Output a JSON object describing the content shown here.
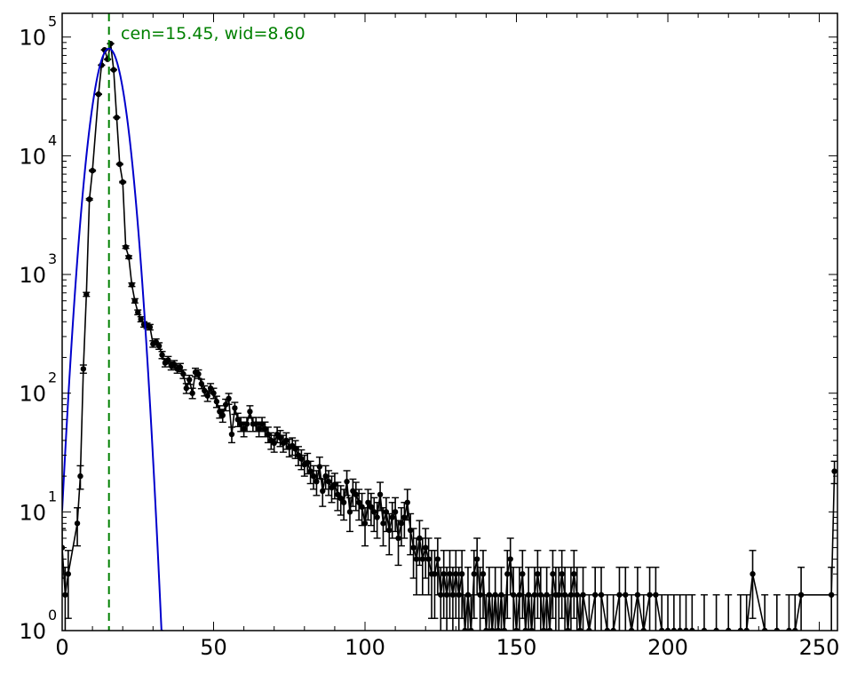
{
  "chart_data": {
    "type": "scatter",
    "title": "",
    "xlabel": "",
    "ylabel": "",
    "xlim": [
      0,
      256
    ],
    "ylim_log10": [
      0,
      5.2
    ],
    "y_scale": "log",
    "grid": false,
    "annotation": "cen=15.45, wid=8.60",
    "x_ticks": [
      {
        "value": 0,
        "label": "0"
      },
      {
        "value": 50,
        "label": "50"
      },
      {
        "value": 100,
        "label": "100"
      },
      {
        "value": 150,
        "label": "150"
      },
      {
        "value": 200,
        "label": "200"
      },
      {
        "value": 250,
        "label": "250"
      }
    ],
    "y_ticks": [
      {
        "exp": 0,
        "base": "10",
        "sup": "0"
      },
      {
        "exp": 1,
        "base": "10",
        "sup": "1"
      },
      {
        "exp": 2,
        "base": "10",
        "sup": "2"
      },
      {
        "exp": 3,
        "base": "10",
        "sup": "3"
      },
      {
        "exp": 4,
        "base": "10",
        "sup": "4"
      },
      {
        "exp": 5,
        "base": "10",
        "sup": "5"
      }
    ],
    "center_line": {
      "x": 15.45,
      "color": "#008000"
    },
    "gaussian_fit": {
      "center": 15.45,
      "sigma": 3.65,
      "peak": 80000,
      "color": "#0000cc"
    },
    "data_color": "#000000",
    "series": [
      {
        "points": [
          [
            0,
            5
          ],
          [
            1,
            2
          ],
          [
            2,
            3
          ],
          [
            5,
            8
          ],
          [
            6,
            20
          ],
          [
            7,
            160
          ],
          [
            8,
            680
          ],
          [
            9,
            4300
          ],
          [
            10,
            7500
          ],
          [
            12,
            33000
          ],
          [
            13,
            58000
          ],
          [
            14,
            78000
          ],
          [
            15,
            65000
          ],
          [
            16,
            88000
          ],
          [
            17,
            53000
          ],
          [
            18,
            21000
          ],
          [
            19,
            8500
          ],
          [
            20,
            6000
          ],
          [
            21,
            1700
          ],
          [
            22,
            1400
          ],
          [
            23,
            820
          ],
          [
            24,
            600
          ],
          [
            25,
            480
          ],
          [
            26,
            420
          ],
          [
            27,
            380
          ],
          [
            28,
            370
          ],
          [
            29,
            360
          ],
          [
            30,
            260
          ],
          [
            31,
            270
          ],
          [
            32,
            250
          ],
          [
            33,
            210
          ],
          [
            34,
            180
          ],
          [
            35,
            190
          ],
          [
            36,
            170
          ],
          [
            37,
            175
          ],
          [
            38,
            160
          ],
          [
            39,
            165
          ],
          [
            40,
            145
          ],
          [
            41,
            110
          ],
          [
            42,
            130
          ],
          [
            43,
            100
          ],
          [
            44,
            150
          ],
          [
            45,
            145
          ],
          [
            46,
            120
          ],
          [
            47,
            105
          ],
          [
            48,
            95
          ],
          [
            49,
            110
          ],
          [
            50,
            100
          ],
          [
            51,
            85
          ],
          [
            52,
            70
          ],
          [
            53,
            65
          ],
          [
            54,
            80
          ],
          [
            55,
            90
          ],
          [
            56,
            45
          ],
          [
            57,
            75
          ],
          [
            58,
            60
          ],
          [
            59,
            55
          ],
          [
            60,
            50
          ],
          [
            61,
            55
          ],
          [
            62,
            70
          ],
          [
            63,
            55
          ],
          [
            64,
            55
          ],
          [
            65,
            50
          ],
          [
            66,
            55
          ],
          [
            67,
            50
          ],
          [
            68,
            45
          ],
          [
            69,
            40
          ],
          [
            70,
            38
          ],
          [
            71,
            45
          ],
          [
            72,
            42
          ],
          [
            73,
            38
          ],
          [
            74,
            40
          ],
          [
            75,
            35
          ],
          [
            76,
            36
          ],
          [
            77,
            34
          ],
          [
            78,
            30
          ],
          [
            79,
            28
          ],
          [
            80,
            25
          ],
          [
            81,
            26
          ],
          [
            82,
            22
          ],
          [
            83,
            20
          ],
          [
            84,
            18
          ],
          [
            85,
            24
          ],
          [
            86,
            15
          ],
          [
            87,
            20
          ],
          [
            88,
            18
          ],
          [
            89,
            16
          ],
          [
            90,
            17
          ],
          [
            91,
            14
          ],
          [
            92,
            13
          ],
          [
            93,
            12
          ],
          [
            94,
            18
          ],
          [
            95,
            10
          ],
          [
            96,
            15
          ],
          [
            97,
            14
          ],
          [
            98,
            12
          ],
          [
            99,
            11
          ],
          [
            100,
            8
          ],
          [
            101,
            12
          ],
          [
            102,
            11
          ],
          [
            103,
            10
          ],
          [
            104,
            9
          ],
          [
            105,
            14
          ],
          [
            106,
            8
          ],
          [
            107,
            10
          ],
          [
            108,
            7
          ],
          [
            109,
            9
          ],
          [
            110,
            10
          ],
          [
            111,
            6
          ],
          [
            112,
            8
          ],
          [
            113,
            9
          ],
          [
            114,
            12
          ],
          [
            115,
            7
          ],
          [
            116,
            5
          ],
          [
            117,
            4
          ],
          [
            118,
            6
          ],
          [
            119,
            4
          ],
          [
            120,
            5
          ],
          [
            121,
            4
          ],
          [
            122,
            3
          ],
          [
            123,
            3
          ],
          [
            124,
            4
          ],
          [
            125,
            2
          ],
          [
            126,
            3
          ],
          [
            127,
            2
          ],
          [
            128,
            3
          ],
          [
            129,
            2
          ],
          [
            130,
            3
          ],
          [
            131,
            2
          ],
          [
            132,
            3
          ],
          [
            133,
            1
          ],
          [
            134,
            2
          ],
          [
            135,
            1
          ],
          [
            136,
            3
          ],
          [
            137,
            4
          ],
          [
            138,
            2
          ],
          [
            139,
            3
          ],
          [
            140,
            1
          ],
          [
            141,
            2
          ],
          [
            142,
            1
          ],
          [
            143,
            2
          ],
          [
            144,
            1
          ],
          [
            145,
            2
          ],
          [
            146,
            1
          ],
          [
            147,
            3
          ],
          [
            148,
            4
          ],
          [
            149,
            2
          ],
          [
            150,
            1
          ],
          [
            151,
            2
          ],
          [
            152,
            3
          ],
          [
            153,
            1
          ],
          [
            154,
            2
          ],
          [
            155,
            1
          ],
          [
            156,
            2
          ],
          [
            157,
            3
          ],
          [
            158,
            2
          ],
          [
            159,
            1
          ],
          [
            160,
            2
          ],
          [
            161,
            1
          ],
          [
            162,
            3
          ],
          [
            163,
            2
          ],
          [
            164,
            2
          ],
          [
            165,
            3
          ],
          [
            166,
            2
          ],
          [
            167,
            1
          ],
          [
            168,
            2
          ],
          [
            169,
            3
          ],
          [
            170,
            2
          ],
          [
            171,
            1
          ],
          [
            172,
            2
          ],
          [
            174,
            1
          ],
          [
            176,
            2
          ],
          [
            178,
            2
          ],
          [
            180,
            1
          ],
          [
            182,
            1
          ],
          [
            184,
            2
          ],
          [
            186,
            2
          ],
          [
            188,
            1
          ],
          [
            190,
            2
          ],
          [
            192,
            1
          ],
          [
            194,
            2
          ],
          [
            196,
            2
          ],
          [
            198,
            1
          ],
          [
            200,
            1
          ],
          [
            202,
            1
          ],
          [
            204,
            1
          ],
          [
            206,
            1
          ],
          [
            208,
            1
          ],
          [
            212,
            1
          ],
          [
            216,
            1
          ],
          [
            220,
            1
          ],
          [
            224,
            1
          ],
          [
            226,
            1
          ],
          [
            228,
            3
          ],
          [
            232,
            1
          ],
          [
            236,
            1
          ],
          [
            240,
            1
          ],
          [
            242,
            1
          ],
          [
            244,
            2
          ],
          [
            254,
            2
          ],
          [
            255,
            22
          ]
        ]
      }
    ]
  }
}
